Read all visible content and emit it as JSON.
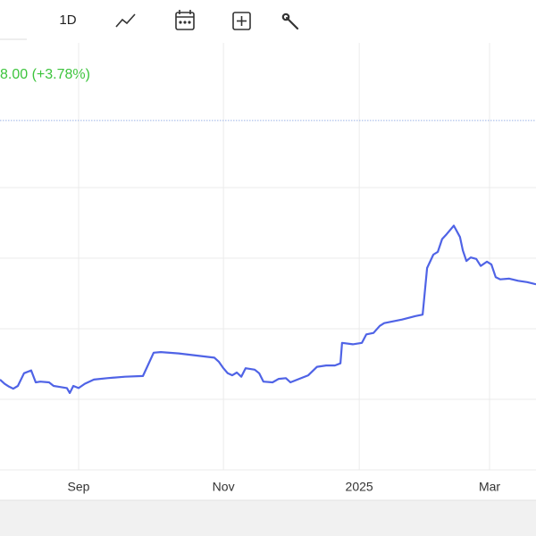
{
  "toolbar": {
    "interval": "1D"
  },
  "quote": {
    "change": "8.00 (+3.78%)"
  },
  "chart_data": {
    "type": "line",
    "color": "#4f63e6",
    "grid": true,
    "x": [
      0,
      1.9,
      3.8,
      5.6,
      7.5,
      10.1,
      13.1,
      15,
      16.9,
      20.6,
      22.5,
      24.4,
      28.1,
      29.3,
      30.8,
      33,
      35.6,
      39.4,
      45,
      52.5,
      60,
      61.9,
      64.5,
      67.5,
      75,
      82.5,
      90,
      91.9,
      93.8,
      95.6,
      97.5,
      99.4,
      101.3,
      103.1,
      106.9,
      108.8,
      110.6,
      114.4,
      117,
      120,
      121.9,
      125.6,
      129.4,
      133.1,
      136.9,
      140.6,
      142.9,
      143.6,
      148.1,
      151.9,
      153.8,
      156.8,
      159.4,
      161.3,
      168.8,
      174.4,
      177.4,
      179.3,
      181.9,
      183.8,
      185.6,
      187.5,
      190.5,
      193.1,
      194.3,
      195.8,
      197.6,
      199.9,
      201.8,
      204.4,
      206.3,
      208.1,
      210,
      213.8,
      217.5,
      221.3,
      225
    ],
    "values": [
      1.28,
      1.22,
      1.18,
      1.15,
      1.19,
      1.37,
      1.41,
      1.24,
      1.25,
      1.24,
      1.19,
      1.18,
      1.16,
      1.09,
      1.19,
      1.16,
      1.22,
      1.28,
      1.3,
      1.32,
      1.33,
      1.47,
      1.66,
      1.67,
      1.65,
      1.62,
      1.59,
      1.53,
      1.44,
      1.37,
      1.34,
      1.38,
      1.32,
      1.44,
      1.42,
      1.37,
      1.25,
      1.24,
      1.29,
      1.3,
      1.24,
      1.29,
      1.34,
      1.46,
      1.48,
      1.48,
      1.51,
      1.8,
      1.78,
      1.8,
      1.92,
      1.94,
      2.04,
      2.08,
      2.13,
      2.18,
      2.2,
      2.86,
      3.05,
      3.09,
      3.27,
      3.34,
      3.46,
      3.3,
      3.11,
      2.96,
      3.01,
      2.99,
      2.89,
      2.95,
      2.91,
      2.73,
      2.7,
      2.71,
      2.68,
      2.66,
      2.63
    ],
    "xlim": [
      0,
      225
    ],
    "xticks": [
      {
        "value": 33,
        "label": "Sep"
      },
      {
        "value": 93.8,
        "label": "Nov"
      },
      {
        "value": 150.8,
        "label": "2025"
      },
      {
        "value": 205.5,
        "label": "Mar"
      }
    ],
    "ylim": [
      0,
      6.05
    ],
    "yticks": [
      0,
      1,
      2,
      3,
      4
    ],
    "reference_line": 4.95
  }
}
